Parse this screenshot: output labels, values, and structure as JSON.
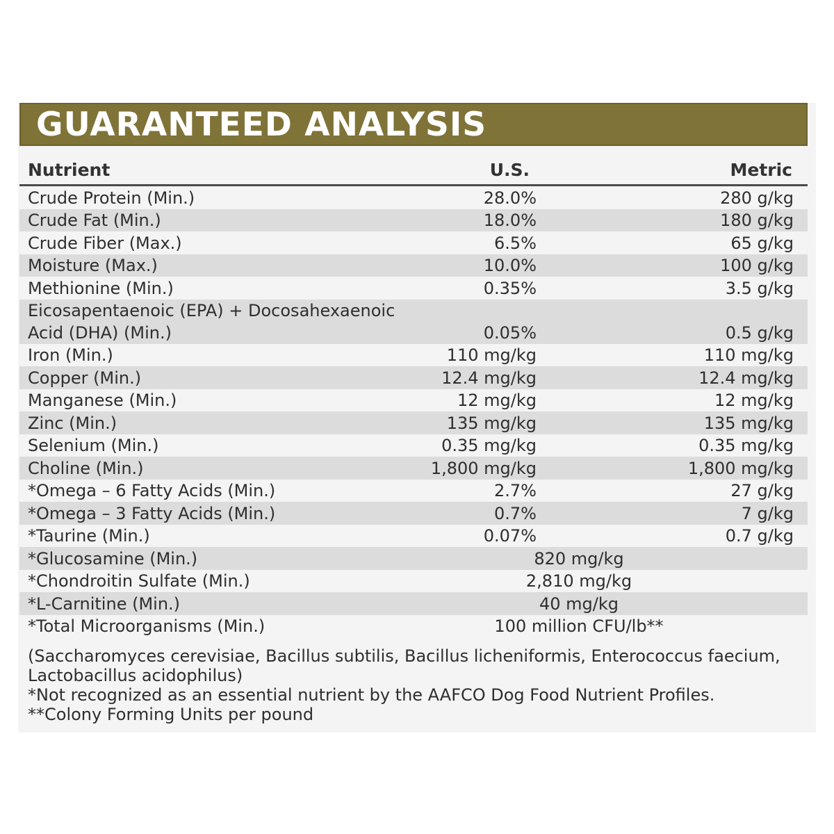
{
  "title": "GUARANTEED ANALYSIS",
  "headers": {
    "nutrient": "Nutrient",
    "us": "U.S.",
    "metric": "Metric"
  },
  "rows": [
    {
      "name": "Crude Protein (Min.)",
      "us": "28.0%",
      "metric": "280 g/kg"
    },
    {
      "name": "Crude Fat (Min.)",
      "us": "18.0%",
      "metric": "180 g/kg"
    },
    {
      "name": "Crude Fiber (Max.)",
      "us": "6.5%",
      "metric": "65 g/kg"
    },
    {
      "name": "Moisture (Max.)",
      "us": "10.0%",
      "metric": "100 g/kg"
    },
    {
      "name": "Methionine (Min.)",
      "us": "0.35%",
      "metric": "3.5 g/kg"
    },
    {
      "name": "Eicosapentaenoic (EPA) + Docosahexaenoic Acid (DHA) (Min.)",
      "us": "0.05%",
      "metric": "0.5 g/kg"
    },
    {
      "name": "Iron (Min.)",
      "us": "110 mg/kg",
      "metric": "110 mg/kg"
    },
    {
      "name": "Copper (Min.)",
      "us": "12.4 mg/kg",
      "metric": "12.4 mg/kg"
    },
    {
      "name": "Manganese (Min.)",
      "us": "12 mg/kg",
      "metric": "12 mg/kg"
    },
    {
      "name": "Zinc (Min.)",
      "us": "135 mg/kg",
      "metric": "135 mg/kg"
    },
    {
      "name": "Selenium (Min.)",
      "us": "0.35 mg/kg",
      "metric": "0.35 mg/kg"
    },
    {
      "name": "Choline (Min.)",
      "us": "1,800 mg/kg",
      "metric": "1,800 mg/kg"
    },
    {
      "name": "*Omega – 6 Fatty Acids (Min.)",
      "us": "2.7%",
      "metric": "27 g/kg"
    },
    {
      "name": "*Omega – 3 Fatty Acids (Min.)",
      "us": "0.7%",
      "metric": "7 g/kg"
    },
    {
      "name": "*Taurine (Min.)",
      "us": "0.07%",
      "metric": "0.7 g/kg"
    },
    {
      "name": "*Glucosamine (Min.)",
      "value": "820 mg/kg"
    },
    {
      "name": "*Chondroitin Sulfate (Min.)",
      "value": "2,810 mg/kg"
    },
    {
      "name": "*L-Carnitine (Min.)",
      "value": "40 mg/kg"
    },
    {
      "name": "*Total Microorganisms (Min.)",
      "value": "100 million CFU/lb**"
    }
  ],
  "notes": [
    "(Saccharomyces cerevisiae, Bacillus subtilis, Bacillus licheniformis, Enterococcus faecium, Lactobacillus acidophilus)",
    "*Not recognized as an essential nutrient by the AAFCO Dog Food Nutrient Profiles.",
    "**Colony Forming Units per pound"
  ]
}
